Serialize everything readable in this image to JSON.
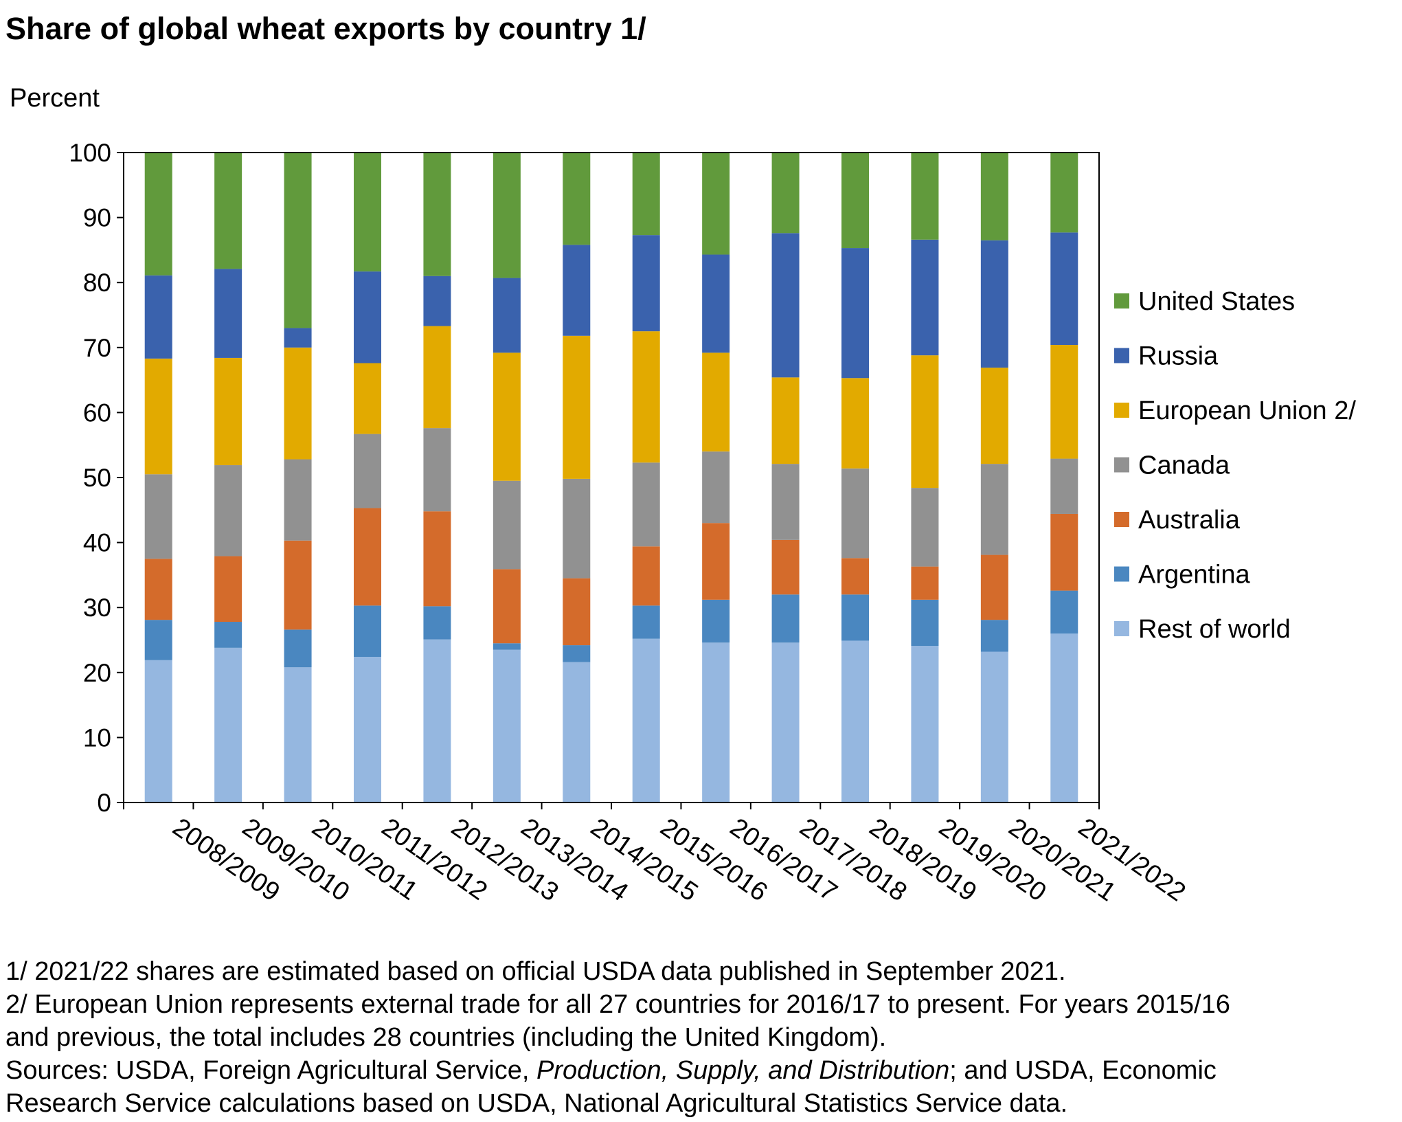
{
  "chart_data": {
    "type": "bar",
    "stacked": true,
    "title": "Share of global wheat exports by country 1/",
    "xlabel": "",
    "ylabel": "Percent",
    "ylim": [
      0,
      100
    ],
    "yticks": [
      0,
      10,
      20,
      30,
      40,
      50,
      60,
      70,
      80,
      90,
      100
    ],
    "grid": false,
    "legend_position": "right",
    "categories": [
      "2008/2009",
      "2009/2010",
      "2010/2011",
      "2011/2012",
      "2012/2013",
      "2013/2014",
      "2014/2015",
      "2015/2016",
      "2016/2017",
      "2017/2018",
      "2018/2019",
      "2019/2020",
      "2020/2021",
      "2021/2022"
    ],
    "series": [
      {
        "name": "Rest of world",
        "color": "#95b7e0",
        "values": [
          21.9,
          23.8,
          20.8,
          22.4,
          25.1,
          23.5,
          21.6,
          25.2,
          24.6,
          24.6,
          24.9,
          24.1,
          23.2,
          26.0
        ]
      },
      {
        "name": "Argentina",
        "color": "#4a87c0",
        "values": [
          6.2,
          4.0,
          5.8,
          7.9,
          5.1,
          1.0,
          2.6,
          5.1,
          6.6,
          7.4,
          7.1,
          7.1,
          4.9,
          6.6
        ]
      },
      {
        "name": "Australia",
        "color": "#d46b2b",
        "values": [
          9.4,
          10.1,
          13.7,
          15.0,
          14.6,
          11.4,
          10.3,
          9.1,
          11.8,
          8.4,
          5.6,
          5.1,
          10.0,
          11.8
        ]
      },
      {
        "name": "Canada",
        "color": "#919191",
        "values": [
          13.0,
          14.0,
          12.5,
          11.4,
          12.8,
          13.6,
          15.3,
          12.9,
          11.0,
          11.7,
          13.8,
          12.1,
          14.0,
          8.5
        ]
      },
      {
        "name": "European Union 2/",
        "color": "#e2aa00",
        "values": [
          17.8,
          16.5,
          17.2,
          10.9,
          15.7,
          19.7,
          22.0,
          20.2,
          15.2,
          13.3,
          13.9,
          20.4,
          14.8,
          17.5
        ]
      },
      {
        "name": "Russia",
        "color": "#3a62ad",
        "values": [
          12.8,
          13.7,
          3.0,
          14.1,
          7.7,
          11.5,
          14.0,
          14.8,
          15.1,
          22.2,
          20.0,
          17.8,
          19.6,
          17.3
        ]
      },
      {
        "name": "United States",
        "color": "#619a3c",
        "values": [
          18.9,
          17.9,
          27.0,
          18.3,
          19.0,
          19.3,
          14.2,
          12.7,
          15.7,
          12.4,
          14.7,
          13.4,
          13.5,
          12.3
        ]
      }
    ]
  },
  "footnotes": {
    "note1": "1/ 2021/22 shares are estimated based on official USDA data published in September 2021.",
    "note2_line1": "2/ European Union represents external trade for all 27 countries for 2016/17 to present.  For years 2015/16",
    "note2_line2": "and previous, the total includes 28 countries (including the United Kingdom).",
    "sources_prefix": "Sources: USDA, Foreign Agricultural Service, ",
    "sources_italic": "Production, Supply, and Distribution",
    "sources_suffix": "; and USDA, Economic",
    "sources_line2": "Research Service calculations based on USDA, National Agricultural Statistics Service data."
  }
}
